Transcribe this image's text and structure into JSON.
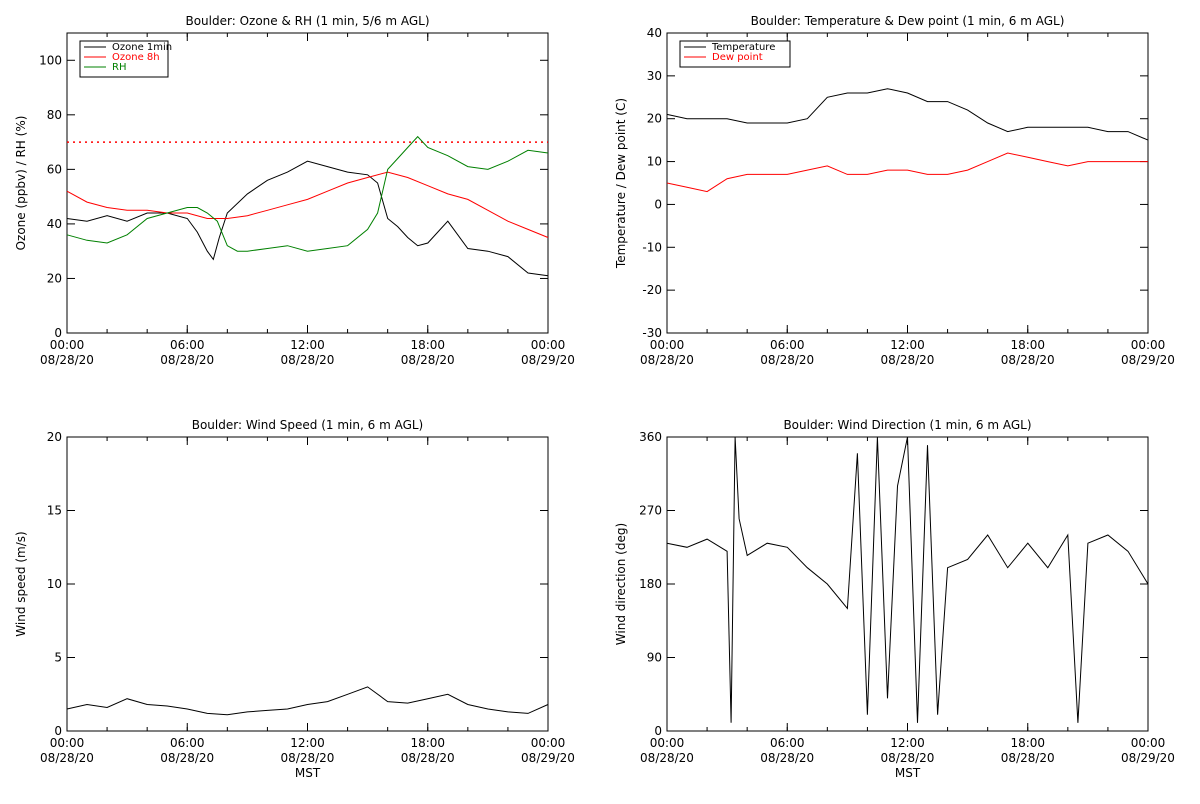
{
  "chart_data": [
    {
      "id": "ozone_rh",
      "type": "line",
      "title": "Boulder: Ozone & RH (1 min, 5/6 m AGL)",
      "ylabel": "Ozone (ppbv) / RH (%)",
      "xlabel": "",
      "ylim": [
        0,
        110
      ],
      "yticks": [
        0,
        20,
        40,
        60,
        80,
        100
      ],
      "xticks": [
        {
          "hour": 0,
          "time": "00:00",
          "date": "08/28/20"
        },
        {
          "hour": 6,
          "time": "06:00",
          "date": "08/28/20"
        },
        {
          "hour": 12,
          "time": "12:00",
          "date": "08/28/20"
        },
        {
          "hour": 18,
          "time": "18:00",
          "date": "08/28/20"
        },
        {
          "hour": 24,
          "time": "00:00",
          "date": "08/29/20"
        }
      ],
      "legend": {
        "position": "top-left",
        "entries": [
          "Ozone 1min",
          "Ozone 8h",
          "RH"
        ]
      },
      "reference_line": {
        "y": 70,
        "style": "dotted",
        "color": "#ff0000"
      },
      "series": [
        {
          "name": "Ozone 1min",
          "color": "#000000",
          "x": [
            0,
            1,
            2,
            3,
            4,
            5,
            6,
            6.5,
            7,
            7.3,
            7.6,
            8,
            9,
            10,
            11,
            12,
            13,
            14,
            15,
            15.5,
            16,
            16.5,
            17,
            17.5,
            18,
            19,
            20,
            21,
            22,
            23,
            24
          ],
          "y": [
            42,
            41,
            43,
            41,
            44,
            44,
            42,
            37,
            30,
            27,
            35,
            44,
            51,
            56,
            59,
            63,
            61,
            59,
            58,
            55,
            42,
            39,
            35,
            32,
            33,
            41,
            31,
            30,
            28,
            22,
            21
          ]
        },
        {
          "name": "Ozone 8h",
          "color": "#ff0000",
          "x": [
            0,
            1,
            2,
            3,
            4,
            5,
            6,
            7,
            8,
            9,
            10,
            11,
            12,
            13,
            14,
            15,
            16,
            17,
            18,
            19,
            20,
            21,
            22,
            23,
            24
          ],
          "y": [
            52,
            48,
            46,
            45,
            45,
            44,
            44,
            42,
            42,
            43,
            45,
            47,
            49,
            52,
            55,
            57,
            59,
            57,
            54,
            51,
            49,
            45,
            41,
            38,
            35
          ]
        },
        {
          "name": "RH",
          "color": "#008000",
          "x": [
            0,
            1,
            2,
            3,
            4,
            5,
            6,
            6.5,
            7,
            7.5,
            8,
            8.5,
            9,
            10,
            11,
            12,
            13,
            14,
            15,
            15.5,
            16,
            16.5,
            17,
            17.5,
            18,
            19,
            20,
            21,
            22,
            23,
            24
          ],
          "y": [
            36,
            34,
            33,
            36,
            42,
            44,
            46,
            46,
            44,
            41,
            32,
            30,
            30,
            31,
            32,
            30,
            31,
            32,
            38,
            44,
            60,
            64,
            68,
            72,
            68,
            65,
            61,
            60,
            63,
            67,
            66
          ]
        }
      ]
    },
    {
      "id": "temp_dew",
      "type": "line",
      "title": "Boulder: Temperature & Dew point (1 min, 6 m AGL)",
      "ylabel": "Temperature / Dew point (C)",
      "xlabel": "",
      "ylim": [
        -30,
        40
      ],
      "yticks": [
        -30,
        -20,
        -10,
        0,
        10,
        20,
        30,
        40
      ],
      "xticks": [
        {
          "hour": 0,
          "time": "00:00",
          "date": "08/28/20"
        },
        {
          "hour": 6,
          "time": "06:00",
          "date": "08/28/20"
        },
        {
          "hour": 12,
          "time": "12:00",
          "date": "08/28/20"
        },
        {
          "hour": 18,
          "time": "18:00",
          "date": "08/28/20"
        },
        {
          "hour": 24,
          "time": "00:00",
          "date": "08/29/20"
        }
      ],
      "legend": {
        "position": "top-left",
        "entries": [
          "Temperature",
          "Dew point"
        ]
      },
      "series": [
        {
          "name": "Temperature",
          "color": "#000000",
          "x": [
            0,
            1,
            2,
            3,
            4,
            5,
            6,
            7,
            8,
            9,
            10,
            11,
            12,
            13,
            14,
            15,
            16,
            17,
            18,
            19,
            20,
            21,
            22,
            23,
            24
          ],
          "y": [
            21,
            20,
            20,
            20,
            19,
            19,
            19,
            20,
            25,
            26,
            26,
            27,
            26,
            24,
            24,
            22,
            19,
            17,
            18,
            18,
            18,
            18,
            17,
            17,
            15
          ]
        },
        {
          "name": "Dew point",
          "color": "#ff0000",
          "x": [
            0,
            1,
            2,
            3,
            4,
            5,
            6,
            7,
            8,
            9,
            10,
            11,
            12,
            13,
            14,
            15,
            16,
            17,
            18,
            19,
            20,
            21,
            22,
            23,
            24
          ],
          "y": [
            5,
            4,
            3,
            6,
            7,
            7,
            7,
            8,
            9,
            7,
            7,
            8,
            8,
            7,
            7,
            8,
            10,
            12,
            11,
            10,
            9,
            10,
            10,
            10,
            10
          ]
        }
      ]
    },
    {
      "id": "wind_speed",
      "type": "line",
      "title": "Boulder: Wind Speed (1 min, 6 m AGL)",
      "ylabel": "Wind speed (m/s)",
      "xlabel": "MST",
      "ylim": [
        0,
        20
      ],
      "yticks": [
        0,
        5,
        10,
        15,
        20
      ],
      "xticks": [
        {
          "hour": 0,
          "time": "00:00",
          "date": "08/28/20"
        },
        {
          "hour": 6,
          "time": "06:00",
          "date": "08/28/20"
        },
        {
          "hour": 12,
          "time": "12:00",
          "date": "08/28/20"
        },
        {
          "hour": 18,
          "time": "18:00",
          "date": "08/28/20"
        },
        {
          "hour": 24,
          "time": "00:00",
          "date": "08/29/20"
        }
      ],
      "series": [
        {
          "name": "",
          "color": "#000000",
          "x": [
            0,
            1,
            2,
            3,
            4,
            5,
            6,
            7,
            8,
            9,
            10,
            11,
            12,
            13,
            14,
            15,
            16,
            17,
            18,
            19,
            20,
            21,
            22,
            23,
            24
          ],
          "y": [
            1.5,
            1.8,
            1.6,
            2.2,
            1.8,
            1.7,
            1.5,
            1.2,
            1.1,
            1.3,
            1.4,
            1.5,
            1.8,
            2.0,
            2.5,
            3.0,
            2.0,
            1.9,
            2.2,
            2.5,
            1.8,
            1.5,
            1.3,
            1.2,
            1.8
          ]
        }
      ]
    },
    {
      "id": "wind_dir",
      "type": "line",
      "title": "Boulder: Wind Direction (1 min, 6 m AGL)",
      "ylabel": "Wind direction (deg)",
      "xlabel": "MST",
      "ylim": [
        0,
        360
      ],
      "yticks": [
        0,
        90,
        180,
        270,
        360
      ],
      "xticks": [
        {
          "hour": 0,
          "time": "00:00",
          "date": "08/28/20"
        },
        {
          "hour": 6,
          "time": "06:00",
          "date": "08/28/20"
        },
        {
          "hour": 12,
          "time": "12:00",
          "date": "08/28/20"
        },
        {
          "hour": 18,
          "time": "18:00",
          "date": "08/28/20"
        },
        {
          "hour": 24,
          "time": "00:00",
          "date": "08/29/20"
        }
      ],
      "series": [
        {
          "name": "",
          "color": "#000000",
          "x": [
            0,
            1,
            2,
            3,
            3.2,
            3.4,
            3.6,
            4,
            5,
            6,
            7,
            8,
            9,
            9.5,
            10,
            10.5,
            11,
            11.5,
            12,
            12.5,
            13,
            13.5,
            14,
            15,
            16,
            17,
            18,
            19,
            20,
            20.5,
            21,
            22,
            23,
            24
          ],
          "y": [
            230,
            225,
            235,
            220,
            10,
            360,
            260,
            215,
            230,
            225,
            200,
            180,
            150,
            340,
            20,
            360,
            40,
            300,
            360,
            10,
            350,
            20,
            200,
            210,
            240,
            200,
            230,
            200,
            240,
            10,
            230,
            240,
            220,
            180
          ]
        }
      ]
    }
  ]
}
